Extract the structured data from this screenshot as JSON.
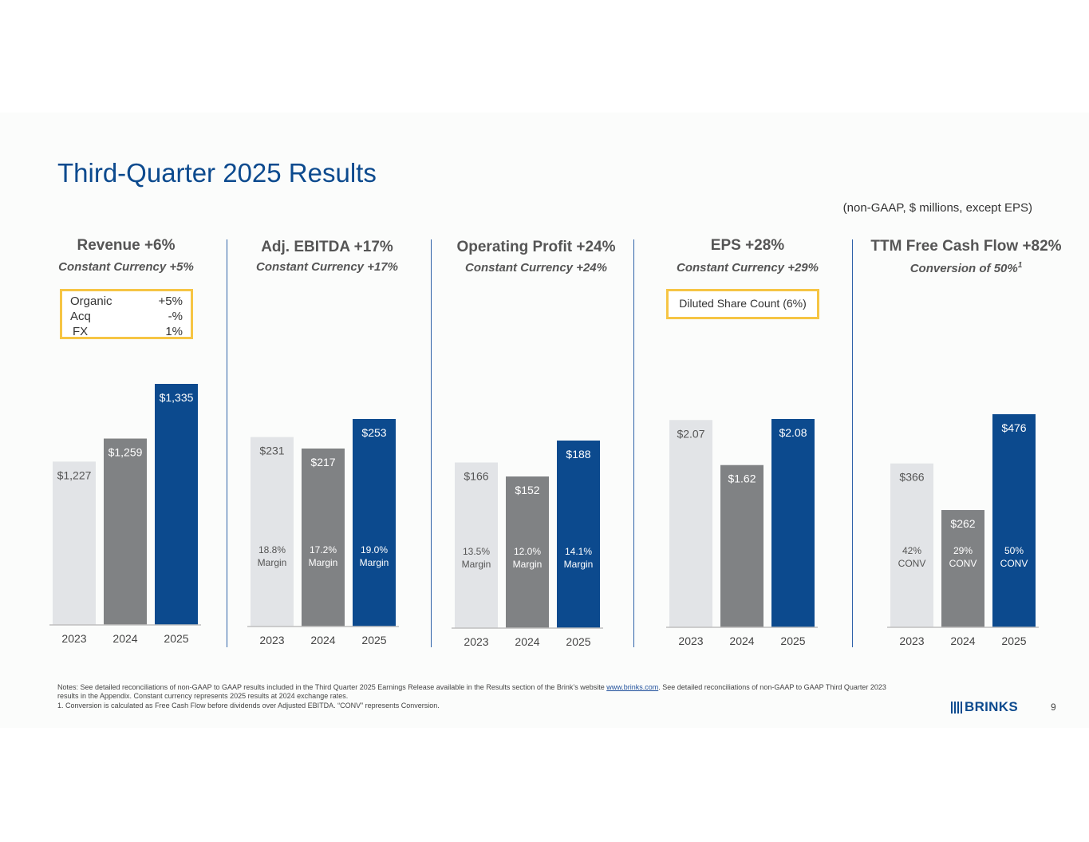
{
  "title": "Third-Quarter 2025 Results",
  "unit_note": "(non-GAAP, $ millions, except EPS)",
  "panels": [
    {
      "heading": "Revenue +6%",
      "sub": "Constant Currency +5%"
    },
    {
      "heading": "Adj. EBITDA  +17%",
      "sub": "Constant Currency +17%"
    },
    {
      "heading": "Operating Profit +24%",
      "sub": "Constant Currency +24%"
    },
    {
      "heading": "EPS  +28%",
      "sub": "Constant Currency +29%"
    },
    {
      "heading": "TTM Free Cash Flow +82%",
      "sub": "Conversion of 50%",
      "sub_sup": "1"
    }
  ],
  "revenue_breakdown": [
    {
      "label": "Organic",
      "value": "+5%"
    },
    {
      "label": "Acq",
      "value": "-%"
    },
    {
      "label": "FX",
      "value": "1%"
    }
  ],
  "eps_callout": "Diluted Share Count (6%)",
  "colors": {
    "y2023": "#e2e4e7",
    "y2024": "#808284",
    "y2025": "#0c4a8e",
    "title": "#0c4a8e",
    "divider": "#2e62a8",
    "callout_border": "#f6c544"
  },
  "chart_data": [
    {
      "type": "bar",
      "name": "Revenue",
      "categories": [
        "2023",
        "2024",
        "2025"
      ],
      "values": [
        1227,
        1259,
        1335
      ],
      "labels": [
        "$1,227",
        "$1,259",
        "$1,335"
      ],
      "inner_labels": null
    },
    {
      "type": "bar",
      "name": "Adj. EBITDA",
      "categories": [
        "2023",
        "2024",
        "2025"
      ],
      "values": [
        231,
        217,
        253
      ],
      "labels": [
        "$231",
        "$217",
        "$253"
      ],
      "inner_labels": [
        [
          "18.8%",
          "Margin"
        ],
        [
          "17.2%",
          "Margin"
        ],
        [
          "19.0%",
          "Margin"
        ]
      ]
    },
    {
      "type": "bar",
      "name": "Operating Profit",
      "categories": [
        "2023",
        "2024",
        "2025"
      ],
      "values": [
        166,
        152,
        188
      ],
      "labels": [
        "$166",
        "$152",
        "$188"
      ],
      "inner_labels": [
        [
          "13.5%",
          "Margin"
        ],
        [
          "12.0%",
          "Margin"
        ],
        [
          "14.1%",
          "Margin"
        ]
      ]
    },
    {
      "type": "bar",
      "name": "EPS",
      "categories": [
        "2023",
        "2024",
        "2025"
      ],
      "values": [
        2.07,
        1.62,
        2.08
      ],
      "labels": [
        "$2.07",
        "$1.62",
        "$2.08"
      ],
      "inner_labels": null
    },
    {
      "type": "bar",
      "name": "TTM Free Cash Flow",
      "categories": [
        "2023",
        "2024",
        "2025"
      ],
      "values": [
        366,
        262,
        476
      ],
      "labels": [
        "$366",
        "$262",
        "$476"
      ],
      "inner_labels": [
        [
          "42%",
          "CONV"
        ],
        [
          "29%",
          "CONV"
        ],
        [
          "50%",
          "CONV"
        ]
      ]
    }
  ],
  "notes": {
    "line1_pre": "Notes: See detailed reconciliations of non-GAAP to GAAP results included in the Third Quarter 2025 Earnings Release available in the Results section of the Brink’s website ",
    "link": "www.brinks.com",
    "line1_post": ". See detailed reconciliations of non-GAAP to GAAP Third Quarter 2023 results in the Appendix. Constant currency represents 2025 results at 2024 exchange rates.",
    "line2": "1. Conversion is calculated as Free Cash Flow before dividends over Adjusted EBITDA. “CONV” represents Conversion."
  },
  "logo_text": "BRINKS",
  "page_number": "9"
}
